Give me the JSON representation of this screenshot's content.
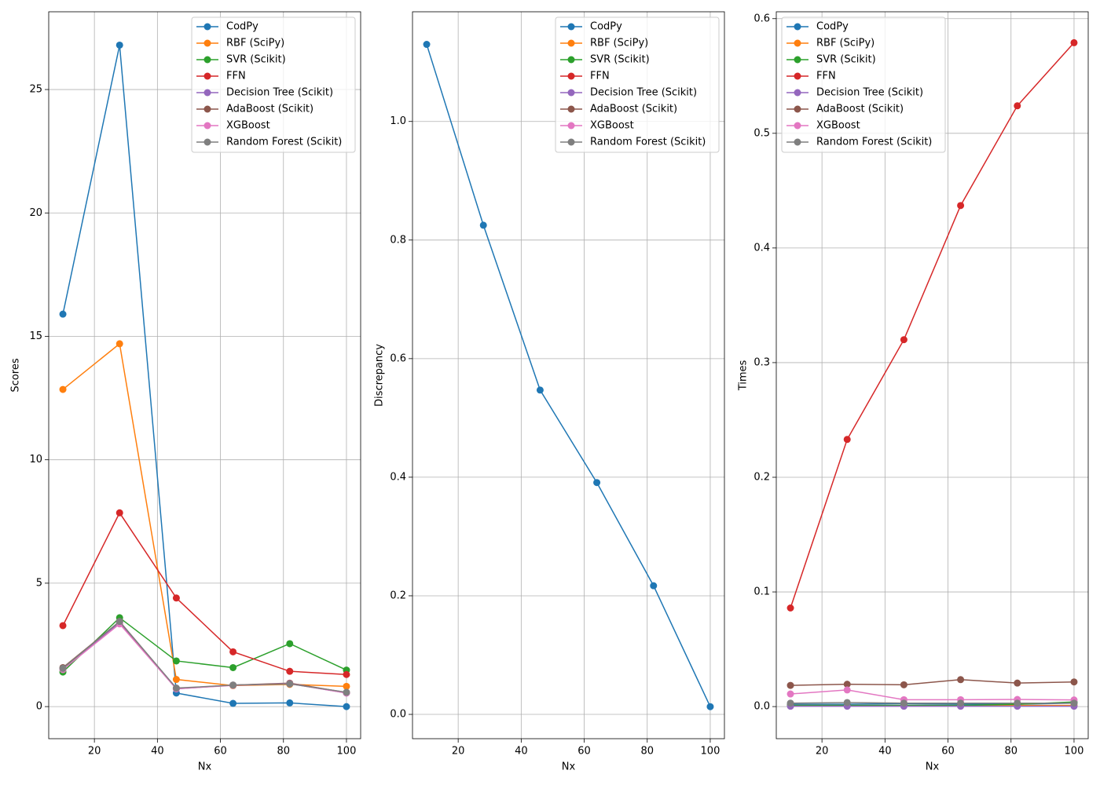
{
  "chart_data": [
    {
      "type": "line",
      "xlabel": "Nx",
      "ylabel": "Scores",
      "x": [
        10,
        28,
        46,
        64,
        82,
        100
      ],
      "xlim": [
        5.5,
        104.5
      ],
      "ylim": [
        -1.3,
        28.15
      ],
      "xticks": [
        20,
        40,
        60,
        80,
        100
      ],
      "yticks": [
        0,
        5,
        10,
        15,
        20,
        25
      ],
      "grid": true,
      "legend": "upper right",
      "series": [
        {
          "name": "CodPy",
          "color": "#1f77b4",
          "values": [
            15.9,
            26.8,
            0.55,
            0.13,
            0.15,
            0.0
          ]
        },
        {
          "name": "RBF (SciPy)",
          "color": "#ff7f0e",
          "values": [
            12.85,
            14.7,
            1.1,
            0.85,
            0.9,
            0.82
          ]
        },
        {
          "name": "SVR (Scikit)",
          "color": "#2ca02c",
          "values": [
            1.4,
            3.6,
            1.85,
            1.58,
            2.55,
            1.48
          ]
        },
        {
          "name": "FFN",
          "color": "#d62728",
          "values": [
            3.28,
            7.85,
            4.4,
            2.22,
            1.43,
            1.3
          ]
        },
        {
          "name": "Decision Tree (Scikit)",
          "color": "#9467bd",
          "values": [
            1.55,
            3.4,
            0.72,
            0.87,
            0.93,
            0.55
          ]
        },
        {
          "name": "AdaBoost (Scikit)",
          "color": "#8c564b",
          "values": [
            1.58,
            3.45,
            0.73,
            0.87,
            0.95,
            0.57
          ]
        },
        {
          "name": "XGBoost",
          "color": "#e377c2",
          "values": [
            1.5,
            3.35,
            0.72,
            0.86,
            0.93,
            0.55
          ]
        },
        {
          "name": "Random Forest (Scikit)",
          "color": "#7f7f7f",
          "values": [
            1.55,
            3.45,
            0.75,
            0.87,
            0.92,
            0.58
          ]
        }
      ]
    },
    {
      "type": "line",
      "xlabel": "Nx",
      "ylabel": "Discrepancy",
      "x": [
        10,
        28,
        46,
        64,
        82,
        100
      ],
      "xlim": [
        5.5,
        104.5
      ],
      "ylim": [
        -0.041,
        1.185
      ],
      "xticks": [
        20,
        40,
        60,
        80,
        100
      ],
      "yticks": [
        {
          "value": 0,
          "label": "0.0"
        },
        0.2,
        0.4,
        0.6,
        0.8,
        {
          "value": 1,
          "label": "1.0"
        }
      ],
      "grid": true,
      "legend": "upper right",
      "series": [
        {
          "name": "CodPy",
          "color": "#1f77b4",
          "values": [
            1.13,
            0.825,
            0.547,
            0.391,
            0.217,
            0.013
          ]
        },
        {
          "name": "RBF (SciPy)",
          "color": "#ff7f0e",
          "values": [
            null,
            null,
            null,
            null,
            null,
            null
          ]
        },
        {
          "name": "SVR (Scikit)",
          "color": "#2ca02c",
          "values": [
            null,
            null,
            null,
            null,
            null,
            null
          ]
        },
        {
          "name": "FFN",
          "color": "#d62728",
          "values": [
            null,
            null,
            null,
            null,
            null,
            null
          ]
        },
        {
          "name": "Decision Tree (Scikit)",
          "color": "#9467bd",
          "values": [
            null,
            null,
            null,
            null,
            null,
            null
          ]
        },
        {
          "name": "AdaBoost (Scikit)",
          "color": "#8c564b",
          "values": [
            null,
            null,
            null,
            null,
            null,
            null
          ]
        },
        {
          "name": "XGBoost",
          "color": "#e377c2",
          "values": [
            null,
            null,
            null,
            null,
            null,
            null
          ]
        },
        {
          "name": "Random Forest (Scikit)",
          "color": "#7f7f7f",
          "values": [
            null,
            null,
            null,
            null,
            null,
            null
          ]
        }
      ]
    },
    {
      "type": "line",
      "xlabel": "Nx",
      "ylabel": "Times",
      "x": [
        10,
        28,
        46,
        64,
        82,
        100
      ],
      "xlim": [
        5.5,
        104.5
      ],
      "ylim": [
        -0.028,
        0.606
      ],
      "xticks": [
        20,
        40,
        60,
        80,
        100
      ],
      "yticks": [
        {
          "value": 0,
          "label": "0.0"
        },
        0.1,
        0.2,
        0.3,
        0.4,
        0.5,
        0.6
      ],
      "grid": true,
      "legend": "upper left",
      "series": [
        {
          "name": "CodPy",
          "color": "#1f77b4",
          "values": [
            0.002,
            0.002,
            0.0025,
            0.002,
            0.002,
            0.003
          ]
        },
        {
          "name": "RBF (SciPy)",
          "color": "#ff7f0e",
          "values": [
            0.001,
            0.001,
            0.001,
            0.001,
            0.001,
            0.001
          ]
        },
        {
          "name": "SVR (Scikit)",
          "color": "#2ca02c",
          "values": [
            0.001,
            0.001,
            0.001,
            0.001,
            0.002,
            0.004
          ]
        },
        {
          "name": "FFN",
          "color": "#d62728",
          "values": [
            0.086,
            0.233,
            0.32,
            0.437,
            0.524,
            0.579
          ]
        },
        {
          "name": "Decision Tree (Scikit)",
          "color": "#9467bd",
          "values": [
            0.0003,
            0.0003,
            0.0003,
            0.0003,
            0.0003,
            0.0003
          ]
        },
        {
          "name": "AdaBoost (Scikit)",
          "color": "#8c564b",
          "values": [
            0.0185,
            0.0195,
            0.019,
            0.0235,
            0.0205,
            0.0215
          ]
        },
        {
          "name": "XGBoost",
          "color": "#e377c2",
          "values": [
            0.011,
            0.0145,
            0.006,
            0.006,
            0.0062,
            0.0058
          ]
        },
        {
          "name": "Random Forest (Scikit)",
          "color": "#7f7f7f",
          "values": [
            0.003,
            0.0035,
            0.003,
            0.003,
            0.003,
            0.003
          ]
        }
      ]
    }
  ]
}
